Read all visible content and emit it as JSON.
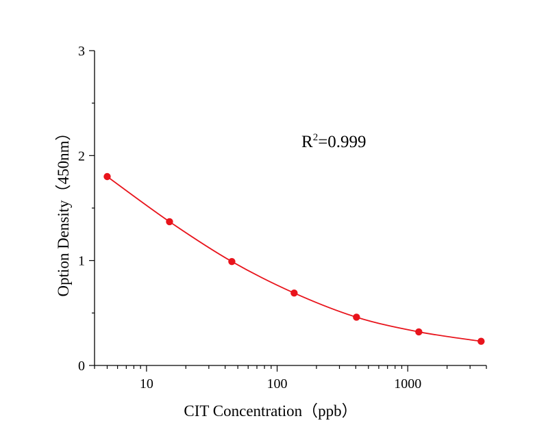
{
  "chart_data": {
    "type": "scatter",
    "title": "",
    "xlabel": "CIT Concentration（ppb）",
    "ylabel": "Option Density（450nm）",
    "x_scale": "log",
    "xlim": [
      4,
      4000
    ],
    "ylim": [
      0,
      3
    ],
    "x_ticks": [
      10,
      100,
      1000
    ],
    "x_tick_labels": [
      "10",
      "100",
      "1000"
    ],
    "y_ticks": [
      0,
      1,
      2,
      3
    ],
    "y_tick_labels": [
      "0",
      "1",
      "2",
      "3"
    ],
    "grid": false,
    "legend": "none",
    "annotation": {
      "base": "R",
      "sup": "2",
      "rest": "=0.999"
    },
    "series": [
      {
        "color": "#e8141c",
        "x": [
          5,
          15,
          45,
          135,
          405,
          1215,
          3645
        ],
        "y": [
          1.8,
          1.37,
          0.99,
          0.69,
          0.46,
          0.32,
          0.23
        ],
        "fit_curve": true
      }
    ]
  }
}
